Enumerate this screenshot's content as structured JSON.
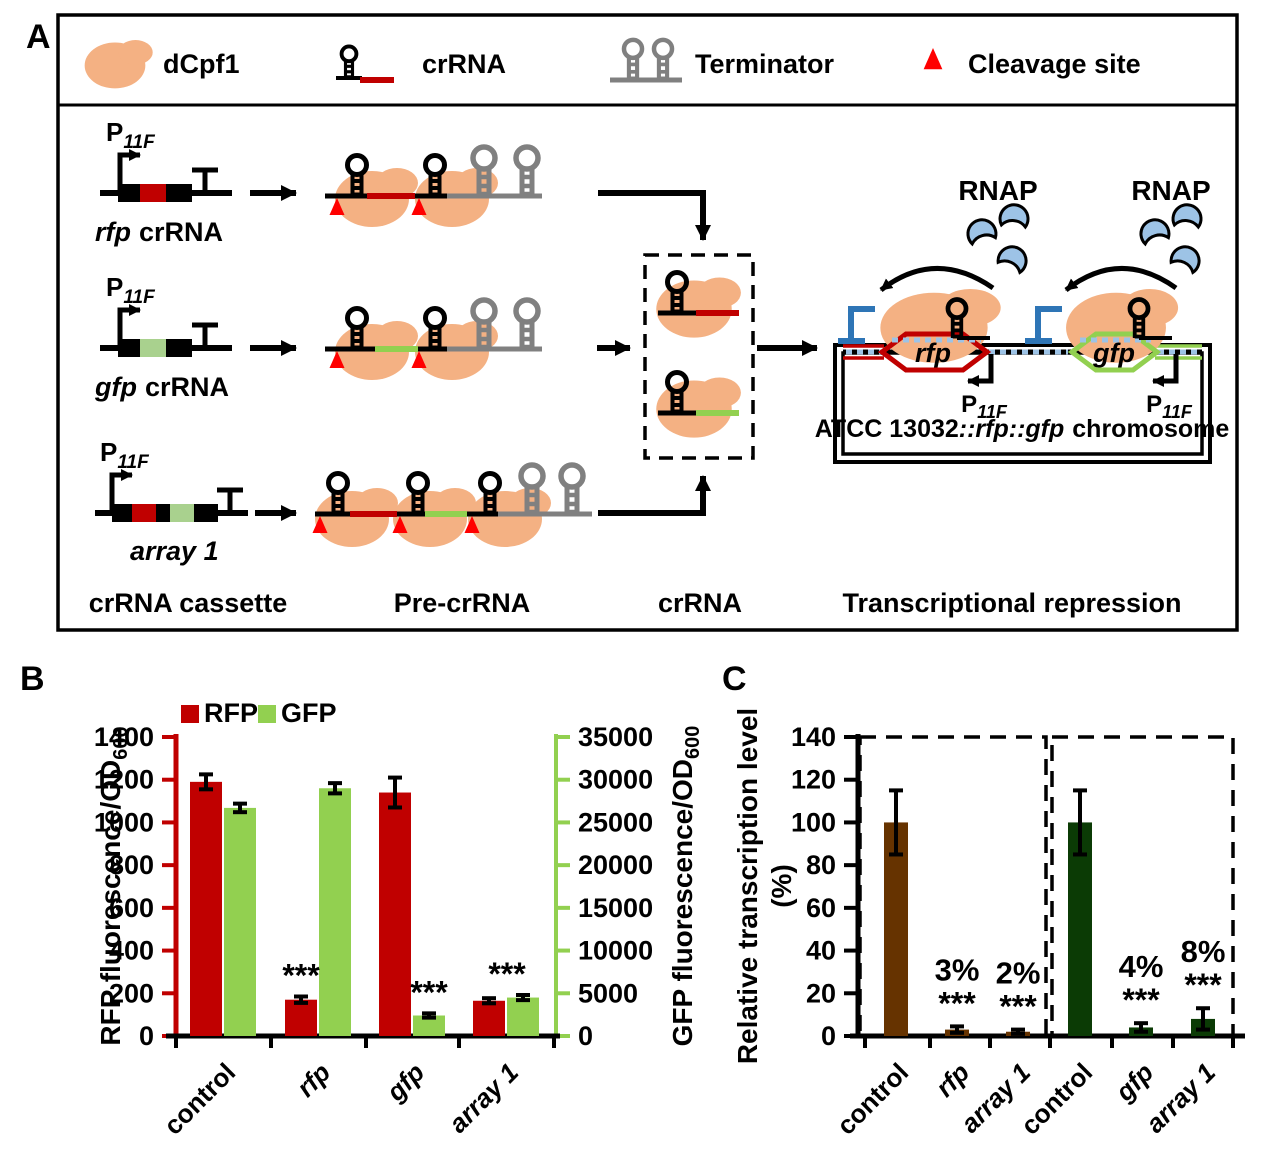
{
  "panels": {
    "a": "A",
    "b": "B",
    "c": "C"
  },
  "panelA": {
    "legend": {
      "dcpf1": "dCpf1",
      "crrna": "crRNA",
      "terminator": "Terminator",
      "cleavage": "Cleavage site"
    },
    "promoter": {
      "base": "P",
      "sub": "11F"
    },
    "rows": [
      {
        "gene": "rfp",
        "suffix": "crRNA"
      },
      {
        "gene": "gfp",
        "suffix": "crRNA"
      },
      {
        "gene": "array 1",
        "suffix": ""
      }
    ],
    "rnap": "RNAP",
    "genes": {
      "rfp": "rfp",
      "gfp": "gfp"
    },
    "chromosome": {
      "prefix": "ATCC 13032",
      "genes": "::rfp::gfp",
      "suffix": "chromosome"
    },
    "stages": [
      "crRNA cassette",
      "Pre-crRNA",
      "crRNA",
      "Transcriptional repression"
    ],
    "colors": {
      "dcpf1": "#F4B183",
      "rfp_red": "#C00000",
      "gfp_green": "#92D050",
      "cassette_green": "#A9D18E",
      "terminator_gray": "#808080",
      "cleavage_red": "#FF0000",
      "rnap_blue": "#9DC3E6",
      "block_blue": "#2E75B6"
    }
  },
  "chart_data": [
    {
      "id": "B",
      "type": "bar",
      "legend_position": "top-left",
      "categories": [
        {
          "label": "control",
          "italic": false
        },
        {
          "label": "rfp",
          "italic": true
        },
        {
          "label": "gfp",
          "italic": true
        },
        {
          "label": "array 1",
          "italic": true
        }
      ],
      "left_axis": {
        "label": "RFP fluorescence/OD",
        "label_sub": "600",
        "min": 0,
        "max": 1400,
        "step": 200,
        "color": "#C00000"
      },
      "right_axis": {
        "label": "GFP fluorescence/OD",
        "label_sub": "600",
        "min": 0,
        "max": 35000,
        "step": 5000,
        "color": "#92D050"
      },
      "series": [
        {
          "name": "RFP",
          "axis": "left",
          "color": "#C00000",
          "values": [
            1190,
            170,
            1140,
            165
          ],
          "errors": [
            35,
            15,
            70,
            12
          ]
        },
        {
          "name": "GFP",
          "axis": "right",
          "color": "#92D050",
          "values": [
            26700,
            29000,
            2400,
            4500
          ],
          "errors": [
            500,
            600,
            250,
            300
          ]
        }
      ],
      "significance": [
        {
          "category": 1,
          "on": "RFP",
          "text": "***"
        },
        {
          "category": 2,
          "on": "GFP",
          "text": "***"
        },
        {
          "category": 3,
          "on": "pair",
          "text": "***"
        }
      ]
    },
    {
      "id": "C",
      "type": "bar",
      "ylabel_line1": "Relative transcription level",
      "ylabel_line2": "(%)",
      "ymin": 0,
      "ymax": 140,
      "ystep": 20,
      "categories": [
        {
          "label": "control",
          "italic": false
        },
        {
          "label": "rfp",
          "italic": true
        },
        {
          "label": "array 1",
          "italic": true
        },
        {
          "label": "control",
          "italic": false
        },
        {
          "label": "gfp",
          "italic": true
        },
        {
          "label": "array 1",
          "italic": true
        }
      ],
      "values": [
        100,
        3,
        2,
        100,
        4,
        8
      ],
      "errors": [
        15,
        1.5,
        1,
        15,
        2,
        5
      ],
      "pct_labels": [
        null,
        "3%",
        "2%",
        null,
        "4%",
        "8%"
      ],
      "significance": [
        null,
        "***",
        "***",
        null,
        "***",
        "***"
      ],
      "bar_colors": [
        "#663300",
        "#663300",
        "#663300",
        "#0B3B05",
        "#0B3B05",
        "#0B3B05"
      ],
      "dashed_groups": [
        [
          0,
          2
        ],
        [
          3,
          5
        ]
      ]
    }
  ]
}
